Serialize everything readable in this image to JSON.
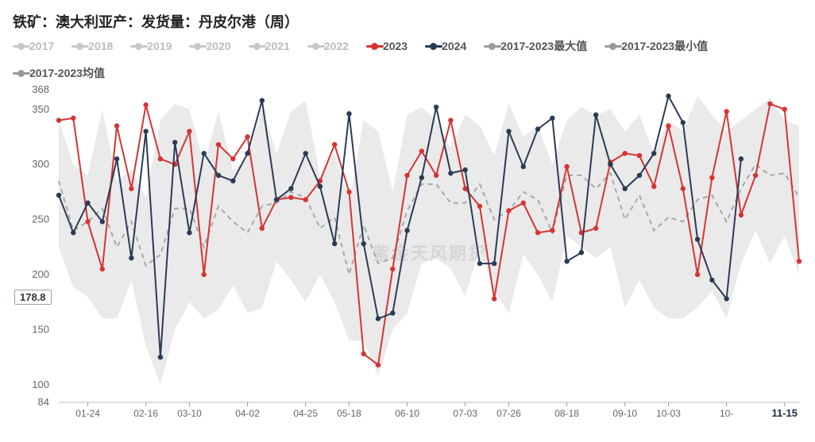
{
  "title": "铁矿：澳大利亚产：发货量：丹皮尔港（周）",
  "watermark": "紫金天风期货",
  "chart": {
    "type": "line",
    "ylim": [
      84,
      370
    ],
    "yticks": [
      84,
      100,
      150,
      200,
      250,
      300,
      350,
      368
    ],
    "yhighlight": 178.8,
    "xlabels": [
      "01-24",
      "02-16",
      "03-10",
      "04-02",
      "04-25",
      "05-18",
      "06-10",
      "07-03",
      "07-26",
      "08-18",
      "09-10",
      "10-03",
      "10-",
      "11-15"
    ],
    "xhighlight_index": 13,
    "n_points": 52,
    "colors": {
      "gray_hist": "#c8c8c8",
      "gray_dash": "#a8a8a8",
      "gray_band": "#d8d8d8",
      "s2023": "#d63434",
      "s2024": "#2a3b55",
      "axis": "#888888",
      "bg": "#ffffff"
    },
    "line_width": {
      "s2023": 2,
      "s2024": 2,
      "gray_dash": 2,
      "band_edge": 0
    },
    "marker_radius": 3.2,
    "legend": [
      {
        "label": "2017",
        "color": "#c8c8c8",
        "dim": true
      },
      {
        "label": "2018",
        "color": "#c8c8c8",
        "dim": true
      },
      {
        "label": "2019",
        "color": "#c8c8c8",
        "dim": true
      },
      {
        "label": "2020",
        "color": "#c8c8c8",
        "dim": true
      },
      {
        "label": "2021",
        "color": "#c8c8c8",
        "dim": true
      },
      {
        "label": "2022",
        "color": "#c8c8c8",
        "dim": true
      },
      {
        "label": "2023",
        "color": "#d63434",
        "dim": false
      },
      {
        "label": "2024",
        "color": "#2a3b55",
        "dim": false
      },
      {
        "label": "2017-2023最大值",
        "color": "#9a9a9a",
        "dim": false
      },
      {
        "label": "2017-2023最小值",
        "color": "#9a9a9a",
        "dim": false
      },
      {
        "label": "2017-2023均值",
        "color": "#9a9a9a",
        "dim": false
      }
    ],
    "series": {
      "band_max": [
        340,
        300,
        290,
        350,
        285,
        295,
        270,
        340,
        355,
        350,
        300,
        348,
        295,
        305,
        352,
        310,
        348,
        358,
        290,
        310,
        265,
        340,
        330,
        275,
        345,
        352,
        340,
        315,
        345,
        335,
        308,
        355,
        325,
        335,
        300,
        340,
        352,
        345,
        350,
        330,
        345,
        310,
        340,
        330,
        362,
        345,
        330,
        340,
        350,
        360,
        340,
        335
      ],
      "band_min": [
        225,
        188,
        180,
        160,
        160,
        195,
        135,
        100,
        150,
        175,
        160,
        168,
        190,
        165,
        170,
        212,
        195,
        175,
        200,
        175,
        140,
        140,
        108,
        150,
        165,
        210,
        215,
        205,
        180,
        225,
        185,
        165,
        218,
        200,
        175,
        235,
        225,
        215,
        225,
        170,
        195,
        170,
        160,
        160,
        170,
        185,
        160,
        210,
        240,
        210,
        235,
        200
      ],
      "mean_dash": [
        285,
        240,
        248,
        260,
        225,
        248,
        208,
        218,
        260,
        260,
        225,
        262,
        248,
        238,
        262,
        265,
        275,
        270,
        242,
        252,
        200,
        245,
        210,
        215,
        258,
        282,
        282,
        265,
        265,
        282,
        250,
        258,
        275,
        268,
        238,
        290,
        290,
        278,
        292,
        250,
        272,
        240,
        252,
        248,
        268,
        272,
        248,
        278,
        300,
        290,
        292,
        270
      ],
      "s2023": [
        340,
        342,
        248,
        205,
        335,
        278,
        354,
        305,
        300,
        330,
        200,
        318,
        305,
        325,
        242,
        268,
        270,
        268,
        285,
        318,
        275,
        128,
        118,
        205,
        290,
        312,
        290,
        340,
        278,
        262,
        178,
        258,
        265,
        238,
        240,
        298,
        238,
        242,
        302,
        310,
        308,
        280,
        335,
        278,
        200,
        288,
        348,
        254,
        290,
        355,
        350,
        212
      ],
      "s2024": [
        272,
        238,
        265,
        248,
        305,
        215,
        330,
        125,
        320,
        238,
        310,
        290,
        285,
        310,
        358,
        268,
        278,
        310,
        280,
        228,
        346,
        228,
        160,
        165,
        240,
        288,
        352,
        292,
        295,
        210,
        210,
        330,
        298,
        332,
        342,
        212,
        220,
        345,
        300,
        278,
        290,
        310,
        362,
        338,
        232,
        195,
        178,
        305,
        null,
        null,
        null,
        null
      ]
    }
  }
}
